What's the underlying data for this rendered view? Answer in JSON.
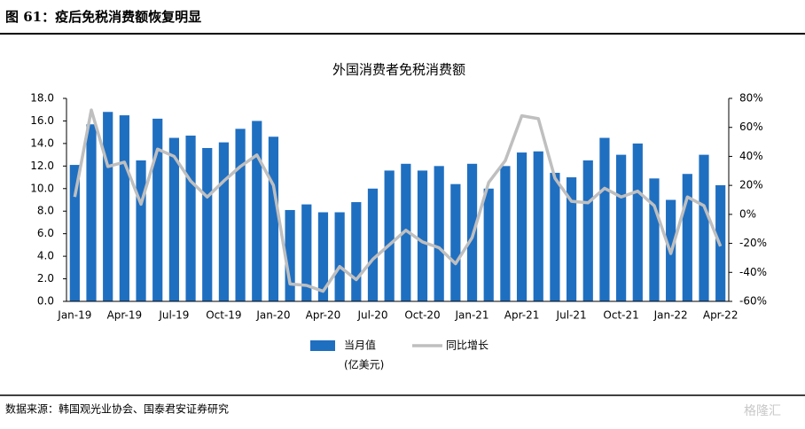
{
  "header": {
    "title": "图 61：疫后免税消费额恢复明显"
  },
  "footer": {
    "source": "数据来源：韩国观光业协会、国泰君安证券研究",
    "watermark": "格隆汇"
  },
  "chart_data": {
    "type": "bar",
    "title": "外国消费者免税消费额",
    "unit_note": "(亿美元)",
    "categories": [
      "Jan-19",
      null,
      null,
      "Apr-19",
      null,
      null,
      "Jul-19",
      null,
      null,
      "Oct-19",
      null,
      null,
      "Jan-20",
      null,
      null,
      "Apr-20",
      null,
      null,
      "Jul-20",
      null,
      null,
      "Oct-20",
      null,
      null,
      "Jan-21",
      null,
      null,
      "Apr-21",
      null,
      null,
      "Jul-21",
      null,
      null,
      "Oct-21",
      null,
      null,
      "Jan-22",
      null,
      null,
      "Apr-22"
    ],
    "series": [
      {
        "name": "当月值",
        "type": "bar",
        "color": "#1f6fc1",
        "values": [
          12.1,
          15.7,
          16.8,
          16.5,
          12.5,
          16.2,
          14.5,
          14.7,
          13.6,
          14.1,
          15.3,
          16.0,
          14.6,
          8.1,
          8.6,
          7.9,
          7.9,
          8.8,
          10.0,
          11.6,
          12.2,
          11.6,
          12.0,
          10.4,
          12.2,
          10.0,
          12.0,
          13.2,
          13.3,
          11.4,
          11.0,
          12.5,
          14.5,
          13.0,
          14.0,
          10.9,
          9.0,
          11.3,
          13.0,
          10.3
        ]
      },
      {
        "name": "同比增长",
        "type": "line",
        "axis": "y2",
        "color": "#bfbfbf",
        "values": [
          12,
          72,
          33,
          36,
          7,
          45,
          40,
          23,
          12,
          23,
          33,
          41,
          20,
          -48,
          -49,
          -53,
          -36,
          -45,
          -31,
          -21,
          -11,
          -19,
          -23,
          -34,
          -16,
          22,
          37,
          68,
          66,
          25,
          9,
          8,
          18,
          12,
          16,
          6,
          -27,
          12,
          6,
          -22
        ]
      }
    ],
    "ylim": [
      0,
      18
    ],
    "yticks": [
      {
        "value": 0,
        "label": "0.0"
      },
      {
        "value": 2,
        "label": "2.0"
      },
      {
        "value": 4,
        "label": "4.0"
      },
      {
        "value": 6,
        "label": "6.0"
      },
      {
        "value": 8,
        "label": "8.0"
      },
      {
        "value": 10,
        "label": "10.0"
      },
      {
        "value": 12,
        "label": "12.0"
      },
      {
        "value": 14,
        "label": "14.0"
      },
      {
        "value": 16,
        "label": "16.0"
      },
      {
        "value": 18,
        "label": "18.0"
      }
    ],
    "y2lim": [
      -60,
      80
    ],
    "y2ticks": [
      {
        "value": -60,
        "label": "-60%"
      },
      {
        "value": -40,
        "label": "-40%"
      },
      {
        "value": -20,
        "label": "-20%"
      },
      {
        "value": 0,
        "label": "0%"
      },
      {
        "value": 20,
        "label": "20%"
      },
      {
        "value": 40,
        "label": "40%"
      },
      {
        "value": 60,
        "label": "60%"
      },
      {
        "value": 80,
        "label": "80%"
      }
    ],
    "grid": false,
    "legend": "bottom"
  }
}
